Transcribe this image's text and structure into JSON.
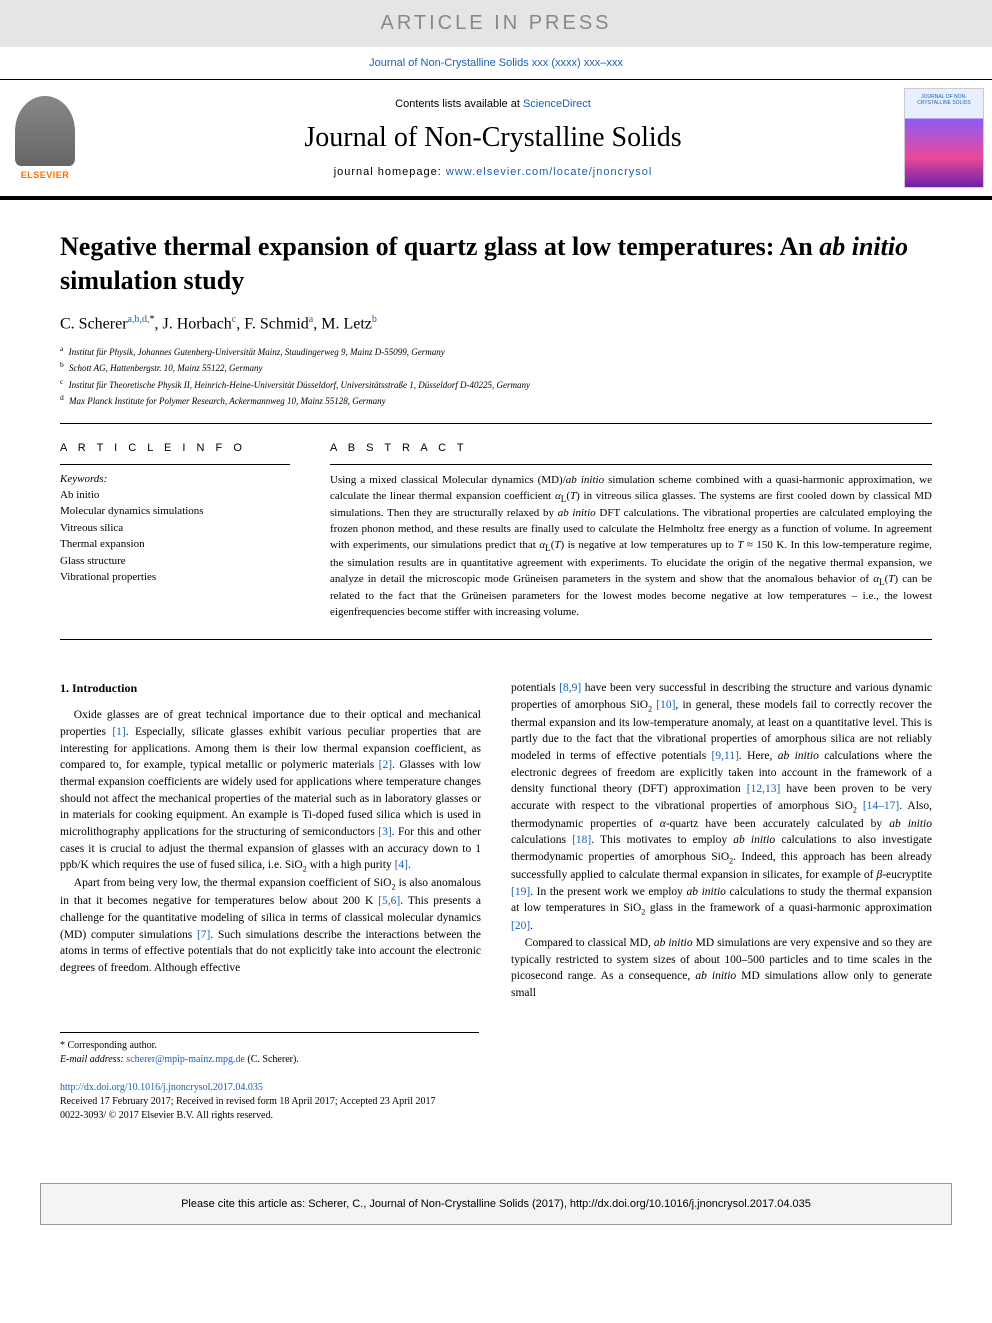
{
  "banner": {
    "text": "ARTICLE IN PRESS"
  },
  "journal_ref": "Journal of Non-Crystalline Solids xxx (xxxx) xxx–xxx",
  "header": {
    "contents_prefix": "Contents lists available at ",
    "contents_link": "ScienceDirect",
    "journal_name": "Journal of Non-Crystalline Solids",
    "homepage_prefix": "journal homepage: ",
    "homepage_url": "www.elsevier.com/locate/jnoncrysol",
    "elsevier": "ELSEVIER",
    "cover_title": "JOURNAL OF NON-CRYSTALLINE SOLIDS"
  },
  "title_pre": "Negative thermal expansion of quartz glass at low temperatures: An ",
  "title_italic": "ab initio",
  "title_post": " simulation study",
  "authors": [
    {
      "name": "C. Scherer",
      "affil": "a,b,d,",
      "corr": "*"
    },
    {
      "name": "J. Horbach",
      "affil": "c"
    },
    {
      "name": "F. Schmid",
      "affil": "a"
    },
    {
      "name": "M. Letz",
      "affil": "b"
    }
  ],
  "affiliations": [
    {
      "key": "a",
      "text": "Institut für Physik, Johannes Gutenberg-Universität Mainz, Staudingerweg 9, Mainz D-55099, Germany"
    },
    {
      "key": "b",
      "text": "Schott AG, Hattenbergstr. 10, Mainz 55122, Germany"
    },
    {
      "key": "c",
      "text": "Institut für Theoretische Physik II, Heinrich-Heine-Universität Düsseldorf, Universitätsstraße 1, Düsseldorf D-40225, Germany"
    },
    {
      "key": "d",
      "text": "Max Planck Institute for Polymer Research, Ackermannweg 10, Mainz 55128, Germany"
    }
  ],
  "article_info_label": "A R T I C L E  I N F O",
  "keywords_label": "Keywords:",
  "keywords": [
    "Ab initio",
    "Molecular dynamics simulations",
    "Vitreous silica",
    "Thermal expansion",
    "Glass structure",
    "Vibrational properties"
  ],
  "abstract_label": "A B S T R A C T",
  "abstract_html": "Using a mixed classical Molecular dynamics (MD)/<span class='italic'>ab initio</span> simulation scheme combined with a quasi-harmonic approximation, we calculate the linear thermal expansion coefficient <span class='italic'>α</span><sub>L</sub>(<span class='italic'>T</span>) in vitreous silica glasses. The systems are first cooled down by classical MD simulations. Then they are structurally relaxed by <span class='italic'>ab initio</span> DFT calculations. The vibrational properties are calculated employing the frozen phonon method, and these results are finally used to calculate the Helmholtz free energy as a function of volume. In agreement with experiments, our simulations predict that <span class='italic'>α</span><sub>L</sub>(<span class='italic'>T</span>) is negative at low temperatures up to <span class='italic'>T</span> ≈ 150 K. In this low-temperature regime, the simulation results are in quantitative agreement with experiments. To elucidate the origin of the negative thermal expansion, we analyze in detail the microscopic mode Grüneisen parameters in the system and show that the anomalous behavior of <span class='italic'>α</span><sub>L</sub>(<span class='italic'>T</span>) can be related to the fact that the Grüneisen parameters for the lowest modes become negative at low temperatures – i.e., the lowest eigenfrequencies become stiffer with increasing volume.",
  "section_heading": "1. Introduction",
  "col1_html": "<p>Oxide glasses are of great technical importance due to their optical and mechanical properties <a href='#'>[1]</a>. Especially, silicate glasses exhibit various peculiar properties that are interesting for applications. Among them is their low thermal expansion coefficient, as compared to, for example, typical metallic or polymeric materials <a href='#'>[2]</a>. Glasses with low thermal expansion coefficients are widely used for applications where temperature changes should not affect the mechanical properties of the material such as in laboratory glasses or in materials for cooking equipment. An example is Ti-doped fused silica which is used in microlithography applications for the structuring of semiconductors <a href='#'>[3]</a>. For this and other cases it is crucial to adjust the thermal expansion of glasses with an accuracy down to 1 ppb/K which requires the use of fused silica, i.e. SiO<sub>2</sub> with a high purity <a href='#'>[4]</a>.</p><p>Apart from being very low, the thermal expansion coefficient of SiO<sub>2</sub> is also anomalous in that it becomes negative for temperatures below about 200 K <a href='#'>[5,6]</a>. This presents a challenge for the quantitative modeling of silica in terms of classical molecular dynamics (MD) computer simulations <a href='#'>[7]</a>. Such simulations describe the interactions between the atoms in terms of effective potentials that do not explicitly take into account the electronic degrees of freedom. Although effective</p>",
  "col2_html": "<p style='text-indent:0'>potentials <a href='#'>[8,9]</a> have been very successful in describing the structure and various dynamic properties of amorphous SiO<sub>2</sub> <a href='#'>[10]</a>, in general, these models fail to correctly recover the thermal expansion and its low-temperature anomaly, at least on a quantitative level. This is partly due to the fact that the vibrational properties of amorphous silica are not reliably modeled in terms of effective potentials <a href='#'>[9,11]</a>. Here, <span class='italic'>ab initio</span> calculations where the electronic degrees of freedom are explicitly taken into account in the framework of a density functional theory (DFT) approximation <a href='#'>[12,13]</a> have been proven to be very accurate with respect to the vibrational properties of amorphous SiO<sub>2</sub> <a href='#'>[14–17]</a>. Also, thermodynamic properties of <span class='italic'>α</span>-quartz have been accurately calculated by <span class='italic'>ab initio</span> calculations <a href='#'>[18]</a>. This motivates to employ <span class='italic'>ab initio</span> calculations to also investigate thermodynamic properties of amorphous SiO<sub>2</sub>. Indeed, this approach has been already successfully applied to calculate thermal expansion in silicates, for example of <span class='italic'>β</span>-eucryptite <a href='#'>[19]</a>. In the present work we employ <span class='italic'>ab initio</span> calculations to study the thermal expansion at low temperatures in SiO<sub>2</sub> glass in the framework of a quasi-harmonic approximation <a href='#'>[20]</a>.</p><p>Compared to classical MD, <span class='italic'>ab initio</span> MD simulations are very expensive and so they are typically restricted to system sizes of about 100–500 particles and to time scales in the picosecond range. As a consequence, <span class='italic'>ab initio</span> MD simulations allow only to generate small</p>",
  "footnote_corr": "* Corresponding author.",
  "footnote_email_label": "E-mail address: ",
  "footnote_email": "scherer@mpip-mainz.mpg.de",
  "footnote_email_suffix": " (C. Scherer).",
  "doi_url": "http://dx.doi.org/10.1016/j.jnoncrysol.2017.04.035",
  "received": "Received 17 February 2017; Received in revised form 18 April 2017; Accepted 23 April 2017",
  "copyright": "0022-3093/ © 2017 Elsevier B.V. All rights reserved.",
  "cite_box": "Please cite this article as: Scherer, C., Journal of Non-Crystalline Solids (2017), http://dx.doi.org/10.1016/j.jnoncrysol.2017.04.035",
  "colors": {
    "link": "#1a5fb4",
    "banner_bg": "#e5e5e5",
    "banner_fg": "#888888",
    "orange": "#ff6b00",
    "cite_bg": "#f4f4f4"
  }
}
